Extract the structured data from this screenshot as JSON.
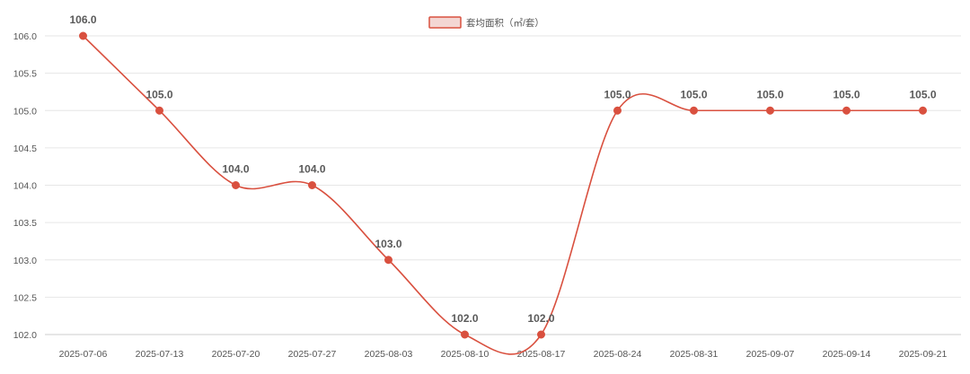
{
  "chart_data": {
    "type": "line",
    "title": "",
    "xlabel": "",
    "ylabel": "",
    "categories": [
      "2025-07-06",
      "2025-07-13",
      "2025-07-20",
      "2025-07-27",
      "2025-08-03",
      "2025-08-10",
      "2025-08-17",
      "2025-08-24",
      "2025-08-31",
      "2025-09-07",
      "2025-09-14",
      "2025-09-21"
    ],
    "series": [
      {
        "name": "套均面积（㎡/套）",
        "values": [
          106.0,
          105.0,
          104.0,
          104.0,
          103.0,
          102.0,
          102.0,
          105.0,
          105.0,
          105.0,
          105.0,
          105.0
        ],
        "data_labels": [
          "106.0",
          "105.0",
          "104.0",
          "104.0",
          "103.0",
          "102.0",
          "102.0",
          "105.0",
          "105.0",
          "105.0",
          "105.0",
          "105.0"
        ],
        "color": "#d9503f",
        "smooth": true
      }
    ],
    "ylim": [
      102.0,
      106.0
    ],
    "y_ticks": [
      "102.0",
      "102.5",
      "103.0",
      "103.5",
      "104.0",
      "104.5",
      "105.0",
      "105.5",
      "106.0"
    ],
    "grid": true,
    "legend_position": "top-center"
  },
  "colors": {
    "line": "#d9503f",
    "grid": "#e6e6e6",
    "axis": "#cccccc",
    "legend_fill": "#f3d6d3"
  }
}
